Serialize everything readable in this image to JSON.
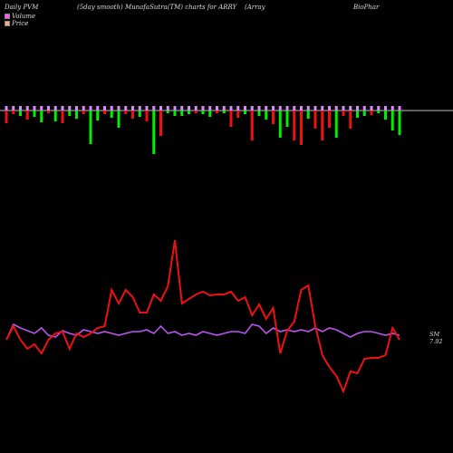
{
  "header": {
    "left": "Daily PVM",
    "mid": "(5day smooth) MunafaSutra(TM) charts for ARRY",
    "company_part1": "(Array",
    "company_part2": "BioPhar"
  },
  "legend": {
    "volume_label": "Volume",
    "price_label": "Price",
    "volume_swatch_color": "#ff55ff",
    "price_swatch_color": "#ffaa88"
  },
  "end_labels": {
    "sm": "SM",
    "price": "7.92"
  },
  "colors": {
    "background": "#000000",
    "bar_up": "#00ee00",
    "bar_down": "#ee1111",
    "bar_top": "#dd88ff",
    "price_line": "#ee1111",
    "volume_line": "#bb55ee",
    "midline": "#bbbbbb"
  },
  "chart_data": {
    "type": "bar+line",
    "bars": {
      "values": [
        -14,
        -4,
        -6,
        -10,
        -7,
        -13,
        -3,
        -12,
        -14,
        -6,
        -9,
        -4,
        -37,
        -11,
        -4,
        -8,
        -19,
        -4,
        -9,
        -7,
        -12,
        -48,
        -28,
        -3,
        -6,
        -6,
        -4,
        -3,
        -4,
        -7,
        -3,
        -3,
        -18,
        -8,
        -4,
        -33,
        -6,
        -10,
        -15,
        -30,
        -18,
        -33,
        -38,
        -9,
        -20,
        -33,
        -19,
        -30,
        -6,
        -20,
        -8,
        -6,
        -5,
        -3,
        -10,
        -22,
        -27
      ],
      "colors": [
        "red",
        "red",
        "green",
        "red",
        "green",
        "green",
        "red",
        "green",
        "red",
        "green",
        "green",
        "red",
        "green",
        "green",
        "red",
        "green",
        "green",
        "red",
        "red",
        "green",
        "red",
        "green",
        "red",
        "green",
        "green",
        "green",
        "green",
        "red",
        "green",
        "green",
        "red",
        "green",
        "red",
        "red",
        "green",
        "red",
        "green",
        "green",
        "red",
        "green",
        "green",
        "red",
        "red",
        "green",
        "red",
        "red",
        "red",
        "green",
        "red",
        "red",
        "green",
        "green",
        "red",
        "green",
        "green",
        "green",
        "green"
      ]
    },
    "price_line": [
      375,
      360,
      375,
      385,
      380,
      390,
      375,
      368,
      366,
      385,
      368,
      372,
      368,
      362,
      360,
      320,
      335,
      320,
      328,
      345,
      345,
      325,
      332,
      316,
      265,
      335,
      330,
      325,
      322,
      326,
      325,
      325,
      322,
      332,
      328,
      348,
      336,
      352,
      340,
      390,
      365,
      355,
      320,
      315,
      360,
      392,
      405,
      415,
      432,
      410,
      412,
      396,
      395,
      395,
      392,
      362,
      375
    ],
    "volume_line": [
      375,
      358,
      362,
      365,
      368,
      362,
      370,
      372,
      365,
      368,
      370,
      364,
      366,
      368,
      366,
      368,
      370,
      368,
      366,
      366,
      364,
      368,
      360,
      368,
      366,
      370,
      368,
      370,
      366,
      368,
      370,
      368,
      366,
      366,
      368,
      358,
      360,
      368,
      362,
      366,
      364,
      366,
      364,
      366,
      362,
      366,
      362,
      364,
      368,
      372,
      368,
      366,
      366,
      368,
      370,
      368,
      370
    ]
  }
}
